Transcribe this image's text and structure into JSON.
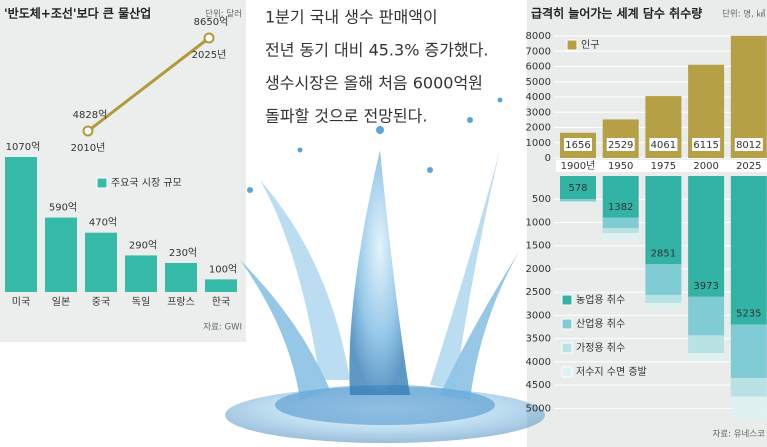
{
  "headline": [
    "1분기 국내 생수 판매액이",
    "전년 동기 대비 45.3% 증가했다.",
    "생수시장은 올해 처음 6000억원",
    "돌파할 것으로 전망된다."
  ],
  "chart_data": [
    {
      "type": "line",
      "title": "'반도체+조선'보다 큰 물산업",
      "subtitle": "단위: 달러",
      "color": "#b09a3a",
      "categories": [
        "2010년",
        "2025년"
      ],
      "values": [
        4828,
        8650
      ],
      "value_labels": [
        "4828억",
        "8650억"
      ]
    },
    {
      "type": "bar",
      "source": "자료: GWI",
      "categories": [
        "미국",
        "일본",
        "중국",
        "독일",
        "프랑스",
        "한국"
      ],
      "series": [
        {
          "name": "주요국 시장 규모",
          "color": "#36bba9",
          "values": [
            1070,
            590,
            470,
            290,
            230,
            100
          ],
          "value_labels": [
            "1070억",
            "590억",
            "470억",
            "290억",
            "230억",
            "100억"
          ]
        }
      ]
    },
    {
      "type": "bar",
      "title": "급격히 늘어가는 세계 담수 취수량",
      "subtitle": "단위: 명, ㎦",
      "categories": [
        "1900년",
        "1950",
        "1975",
        "2000",
        "2025"
      ],
      "series": [
        {
          "name": "인구",
          "color": "#b5a045",
          "values": [
            1656,
            2529,
            4061,
            6115,
            8012
          ]
        }
      ],
      "ylim": [
        0,
        8000
      ],
      "yticks": [
        0,
        1000,
        2000,
        3000,
        4000,
        5000,
        6000,
        7000,
        8000
      ],
      "grid": true
    },
    {
      "type": "bar",
      "stacked": true,
      "inverted": true,
      "source": "자료: 유네스코",
      "series": [
        {
          "name": "농업용 취수",
          "color": "#33b3a5",
          "values": [
            500,
            900,
            1900,
            2600,
            3200
          ]
        },
        {
          "name": "산업용 취수",
          "color": "#80ccd4",
          "values": [
            40,
            220,
            660,
            830,
            1150
          ]
        },
        {
          "name": "가정용 취수",
          "color": "#b8e2e4",
          "values": [
            20,
            110,
            175,
            380,
            400
          ]
        },
        {
          "name": "저수지 수면 증발",
          "color": "#dff1f1",
          "values": [
            18,
            152,
            116,
            163,
            485
          ]
        }
      ],
      "totals": [
        578,
        1382,
        2851,
        3973,
        5235
      ],
      "ylim": [
        0,
        5250
      ],
      "yticks": [
        500,
        1000,
        1500,
        2000,
        2500,
        3000,
        3500,
        4000,
        4500,
        5000
      ],
      "grid": true
    }
  ]
}
